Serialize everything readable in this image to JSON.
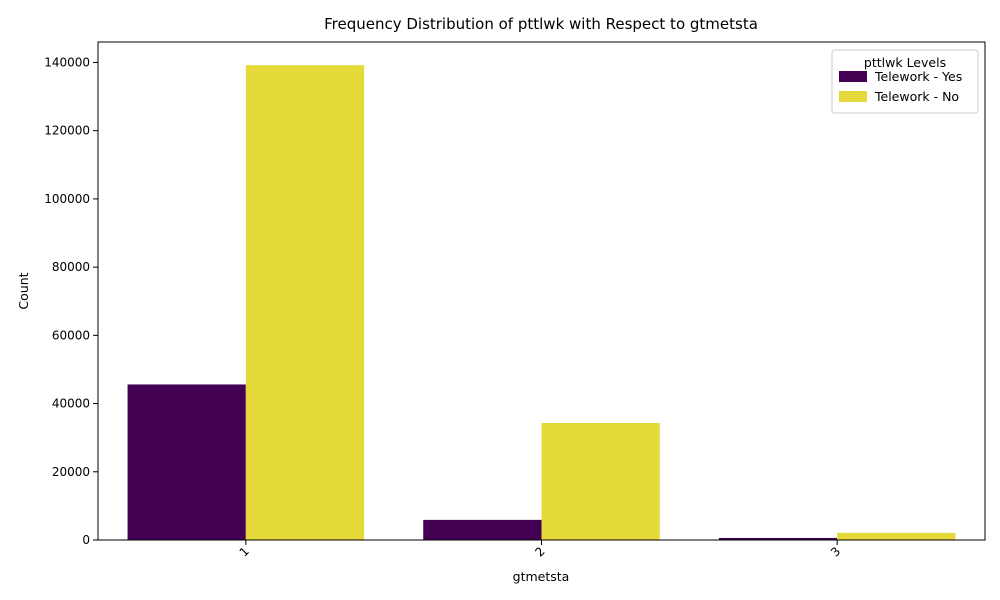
{
  "chart_data": {
    "type": "bar",
    "title": "Frequency Distribution of pttlwk with Respect to gtmetsta",
    "xlabel": "gtmetsta",
    "ylabel": "Count",
    "categories": [
      "1",
      "2",
      "3"
    ],
    "series": [
      {
        "name": "Telework - Yes",
        "color": "#440154",
        "values": [
          45600,
          5900,
          600
        ]
      },
      {
        "name": "Telework - No",
        "color": "#e6d93a",
        "values": [
          139200,
          34300,
          2100
        ]
      }
    ],
    "ylim": [
      0,
      146000
    ],
    "yticks": [
      0,
      20000,
      40000,
      60000,
      80000,
      100000,
      120000,
      140000
    ],
    "xtick_rotation": 45,
    "grid": false,
    "legend": {
      "title": "pttlwk Levels",
      "placement": "top-right"
    }
  }
}
